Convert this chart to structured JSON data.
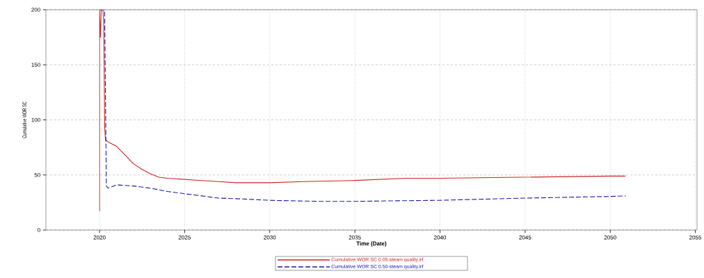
{
  "chart_data": {
    "type": "line",
    "xlabel": "Time (Date)",
    "ylabel": "Cumulative WOR SC",
    "xlim": [
      2016.85,
      2055.1
    ],
    "ylim": [
      0,
      200
    ],
    "xticks": [
      2020,
      2025,
      2030,
      2035,
      2040,
      2045,
      2050,
      2055
    ],
    "yticks": [
      0,
      50,
      100,
      150,
      200
    ],
    "grid": true,
    "legend": "bottom",
    "series": [
      {
        "name": "Cumulative WOR SC 0.05-steam quality.irf",
        "color": "#cc2222",
        "line_style": "solid",
        "x": [
          2020.0,
          2020.0,
          2020.05,
          2020.1,
          2020.2,
          2020.25,
          2020.3,
          2020.35,
          2020.5,
          2021,
          2021.5,
          2022,
          2022.5,
          2023,
          2023.5,
          2024,
          2025,
          2026,
          2027,
          2028,
          2030,
          2032,
          2035,
          2038,
          2040,
          2045,
          2050,
          2050.9
        ],
        "values": [
          17,
          200,
          175,
          200,
          200,
          185,
          93,
          82,
          80,
          76,
          68,
          60,
          55,
          51,
          48,
          47,
          46,
          45,
          44,
          43,
          43,
          44,
          45,
          47,
          47,
          48,
          49,
          49
        ]
      },
      {
        "name": "Cumulative WOR SC 0.50-steam quality.irf",
        "color": "#1a1aaa",
        "line_style": "dashed",
        "x": [
          2020.0,
          2020.3,
          2020.4,
          2020.5,
          2021,
          2022,
          2023,
          2024,
          2025,
          2026,
          2027,
          2028,
          2030,
          2033,
          2035,
          2037,
          2040,
          2045,
          2050,
          2050.9
        ],
        "values": [
          200,
          200,
          40,
          38,
          41,
          40,
          38,
          35,
          33,
          31,
          29,
          28.5,
          27,
          26,
          26,
          26.5,
          27,
          29,
          30.5,
          31
        ]
      }
    ]
  }
}
